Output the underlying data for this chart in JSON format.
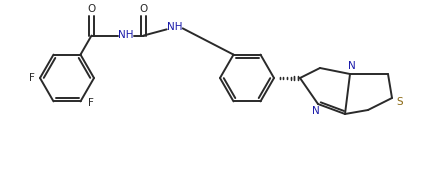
{
  "background_color": "#ffffff",
  "line_color": "#2a2a2a",
  "figsize": [
    4.29,
    1.86
  ],
  "dpi": 100,
  "lw": 1.4,
  "font_size": 7.5,
  "n_color": "#1a1aaa",
  "s_color": "#8B6914",
  "atom_colors": {
    "F": "#2a2a2a",
    "O": "#2a2a2a",
    "N": "#1a1aaa",
    "S": "#8B6914"
  },
  "xlim": [
    0,
    429
  ],
  "ylim": [
    0,
    186
  ]
}
